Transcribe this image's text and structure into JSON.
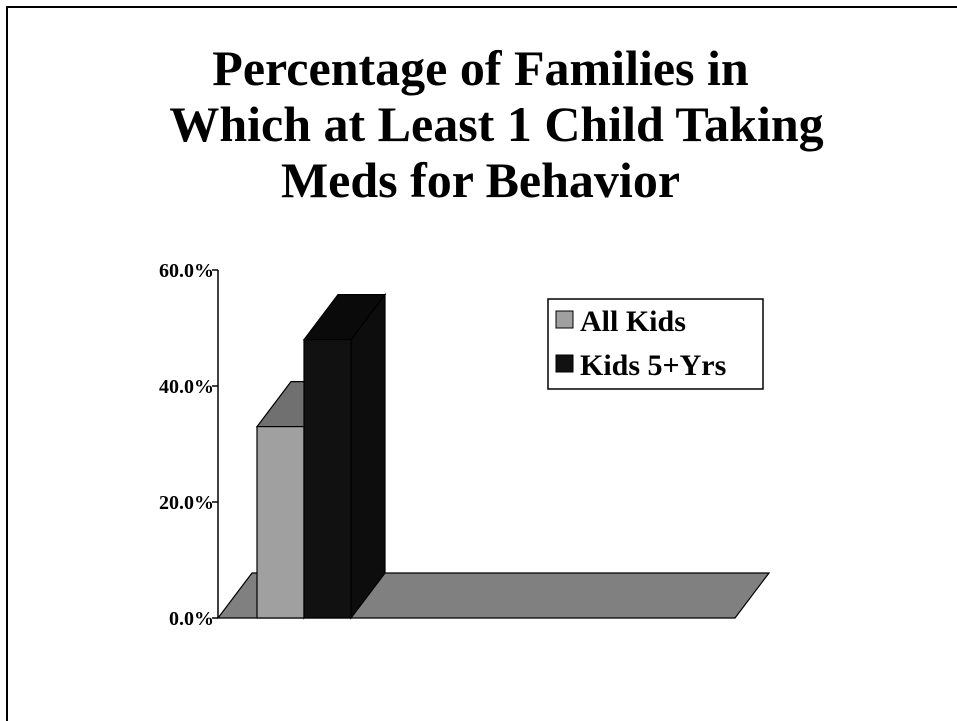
{
  "chart_data": {
    "type": "bar",
    "title": "Percentage of Families in Which at Least 1 Child Taking Meds for Behavior",
    "title_lines": [
      "Percentage of Families in",
      "Which at Least 1 Child Taking",
      "Meds for Behavior"
    ],
    "categories": [
      ""
    ],
    "series": [
      {
        "name": "All Kids",
        "values": [
          33.0
        ],
        "color": "#a0a0a0"
      },
      {
        "name": "Kids 5+Yrs",
        "values": [
          48.0
        ],
        "color": "#111111"
      }
    ],
    "ylim": [
      0,
      60
    ],
    "yticks": [
      0,
      20,
      40,
      60
    ],
    "ytick_labels": [
      "0.0%",
      "20.0%",
      "40.0%",
      "60.0%"
    ],
    "xlabel": "",
    "ylabel": "",
    "grid": false,
    "legend_position": "top-right",
    "style": "3d",
    "floor_color": "#808080"
  }
}
